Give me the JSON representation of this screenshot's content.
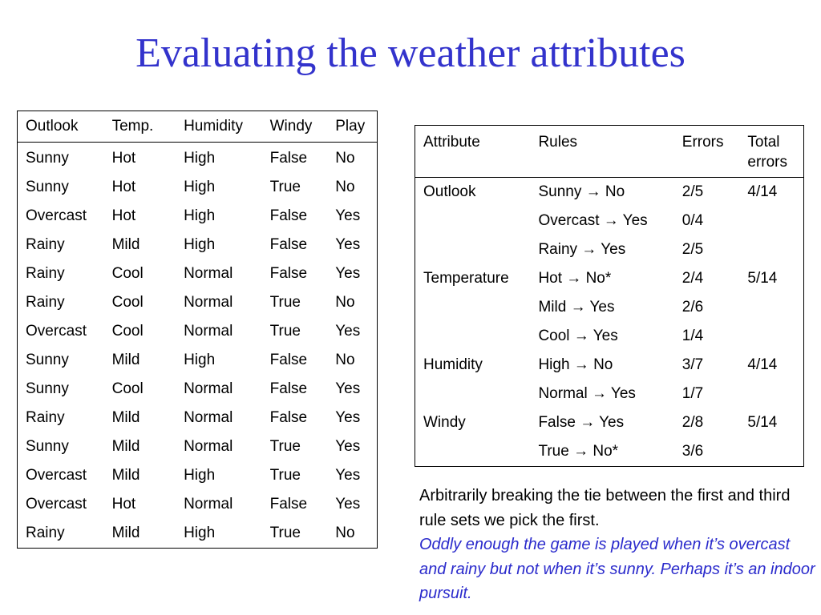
{
  "title": "Evaluating the weather attributes",
  "weather_table": {
    "headers": [
      "Outlook",
      "Temp.",
      "Humidity",
      "Windy",
      "Play"
    ],
    "rows": [
      [
        "Sunny",
        "Hot",
        "High",
        "False",
        "No"
      ],
      [
        "Sunny",
        "Hot",
        "High",
        "True",
        "No"
      ],
      [
        "Overcast",
        "Hot",
        "High",
        "False",
        "Yes"
      ],
      [
        "Rainy",
        "Mild",
        "High",
        "False",
        "Yes"
      ],
      [
        "Rainy",
        "Cool",
        "Normal",
        "False",
        "Yes"
      ],
      [
        "Rainy",
        "Cool",
        "Normal",
        "True",
        "No"
      ],
      [
        "Overcast",
        "Cool",
        "Normal",
        "True",
        "Yes"
      ],
      [
        "Sunny",
        "Mild",
        "High",
        "False",
        "No"
      ],
      [
        "Sunny",
        "Cool",
        "Normal",
        "False",
        "Yes"
      ],
      [
        "Rainy",
        "Mild",
        "Normal",
        "False",
        "Yes"
      ],
      [
        "Sunny",
        "Mild",
        "Normal",
        "True",
        "Yes"
      ],
      [
        "Overcast",
        "Mild",
        "High",
        "True",
        "Yes"
      ],
      [
        "Overcast",
        "Hot",
        "Normal",
        "False",
        "Yes"
      ],
      [
        "Rainy",
        "Mild",
        "High",
        "True",
        "No"
      ]
    ]
  },
  "rules_table": {
    "headers": [
      "Attribute",
      "Rules",
      "Errors",
      "Total errors"
    ],
    "rows": [
      [
        "Outlook",
        "Sunny → No",
        "2/5",
        "4/14"
      ],
      [
        "",
        "Overcast → Yes",
        "0/4",
        ""
      ],
      [
        "",
        "Rainy → Yes",
        "2/5",
        ""
      ],
      [
        "Temperature",
        "Hot → No*",
        "2/4",
        "5/14"
      ],
      [
        "",
        "Mild →  Yes",
        "2/6",
        ""
      ],
      [
        "",
        "Cool →  Yes",
        "1/4",
        ""
      ],
      [
        "Humidity",
        "High →  No",
        "3/7",
        "4/14"
      ],
      [
        "",
        "Normal → Yes",
        "1/7",
        ""
      ],
      [
        "Windy",
        "False → Yes",
        "2/8",
        "5/14"
      ],
      [
        "",
        "True → No*",
        "3/6",
        ""
      ]
    ]
  },
  "note": {
    "plain": "Arbitrarily breaking the tie between the first and third rule sets we pick the first.",
    "italic": "Oddly enough the game is played when it’s overcast and rainy but not when it’s sunny. Perhaps it’s an indoor pursuit."
  }
}
